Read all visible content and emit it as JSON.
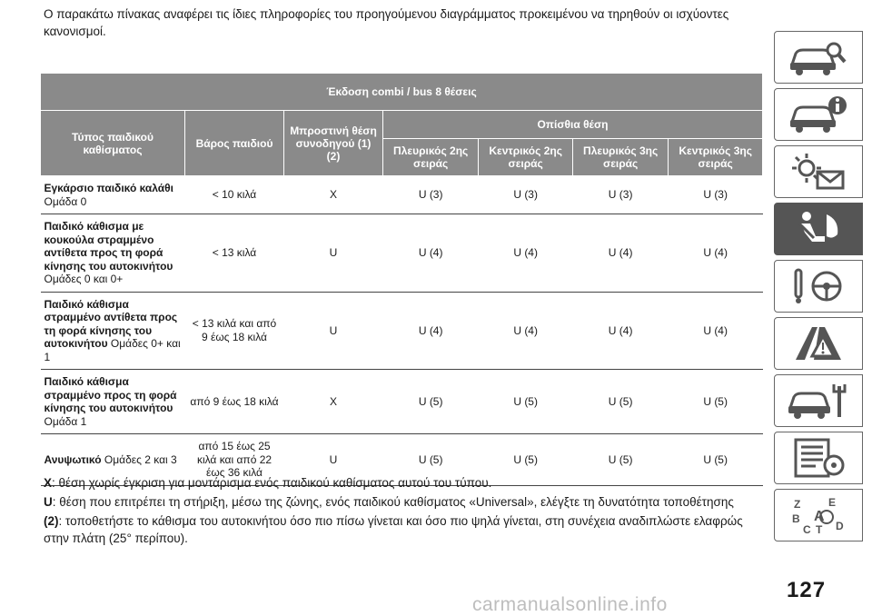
{
  "intro": "Ο παρακάτω πίνακας αναφέρει τις ίδιες πληροφορίες του προηγούμενου διαγράμματος προκειμένου να τηρηθούν οι ισχύοντες κανονισμοί.",
  "table": {
    "title": "Έκδοση combi / bus 8 θέσεις",
    "col_type": "Τύπος παιδικού καθίσματος",
    "col_weight": "Βάρος παιδιού",
    "col_front": "Μπροστινή θέση συνοδηγού (1) (2)",
    "col_rear_group": "Οπίσθια θέση",
    "rear_cols": [
      "Πλευρικός 2ης σειράς",
      "Κεντρικός 2ης σειράς",
      "Πλευρικός 3ης σειράς",
      "Κεντρικός 3ης σειράς"
    ],
    "rows": [
      {
        "type_bold": "Εγκάρσιο παιδικό καλάθι",
        "type_normal": " Ομάδα 0",
        "weight": "< 10 κιλά",
        "front": "X",
        "r1": "U (3)",
        "r2": "U (3)",
        "r3": "U (3)",
        "r4": "U (3)"
      },
      {
        "type_bold": "Παιδικό κάθισμα με κουκούλα στραμμένο αντίθετα προς τη φορά κίνησης του αυτοκινήτου",
        "type_normal": " Ομάδες 0 και 0+",
        "weight": "< 13 κιλά",
        "front": "U",
        "r1": "U (4)",
        "r2": "U (4)",
        "r3": "U (4)",
        "r4": "U (4)"
      },
      {
        "type_bold": "Παιδικό κάθισμα στραμμένο αντίθετα προς τη φορά κίνησης του αυτοκινήτου",
        "type_normal": " Ομάδες 0+ και 1",
        "weight": "< 13 κιλά και από 9 έως 18 κιλά",
        "front": "U",
        "r1": "U (4)",
        "r2": "U (4)",
        "r3": "U (4)",
        "r4": "U (4)"
      },
      {
        "type_bold": "Παιδικό κάθισμα στραμμένο προς τη φορά κίνησης του αυτοκινήτου",
        "type_normal": " Ομάδα 1",
        "weight": "από 9 έως 18 κιλά",
        "front": "X",
        "r1": "U (5)",
        "r2": "U (5)",
        "r3": "U (5)",
        "r4": "U (5)"
      },
      {
        "type_bold": "Ανυψωτικό",
        "type_normal": " Ομάδες 2 και 3",
        "weight": "από 15 έως 25 κιλά και από 22 έως 36 κιλά",
        "front": "U",
        "r1": "U (5)",
        "r2": "U (5)",
        "r3": "U (5)",
        "r4": "U (5)"
      }
    ]
  },
  "notes": [
    {
      "key": "X",
      "text": ": θέση χωρίς έγκριση για μοντάρισμα ενός παιδικού καθίσματος αυτού του τύπου."
    },
    {
      "key": "U",
      "text": ": θέση που επιτρέπει τη στήριξη, μέσω της ζώνης, ενός παιδικού καθίσματος «Universal», ελέγξτε τη δυνατότητα τοποθέτησης"
    },
    {
      "key": "(2)",
      "text": ": τοποθετήστε το κάθισμα του αυτοκινήτου όσο πιο πίσω γίνεται και όσο πιο ψηλά γίνεται, στη συνέχεια αναδιπλώστε ελαφρώς στην πλάτη (25° περίπου)."
    }
  ],
  "sidebar": {
    "tabs": [
      {
        "icon": "car-search-icon",
        "active": false
      },
      {
        "icon": "car-info-icon",
        "active": false
      },
      {
        "icon": "warning-lights-icon",
        "active": false
      },
      {
        "icon": "seat-safety-icon",
        "active": true
      },
      {
        "icon": "steering-wheel-key-icon",
        "active": false
      },
      {
        "icon": "road-warning-icon",
        "active": false
      },
      {
        "icon": "car-service-icon",
        "active": false
      },
      {
        "icon": "specifications-icon",
        "active": false
      },
      {
        "icon": "alphabetical-index-icon",
        "active": false
      }
    ],
    "letters": [
      "Z",
      "E",
      "B",
      "A",
      "C",
      "T",
      "D"
    ]
  },
  "page_number": "127",
  "watermark": "carmanualsonline.info"
}
